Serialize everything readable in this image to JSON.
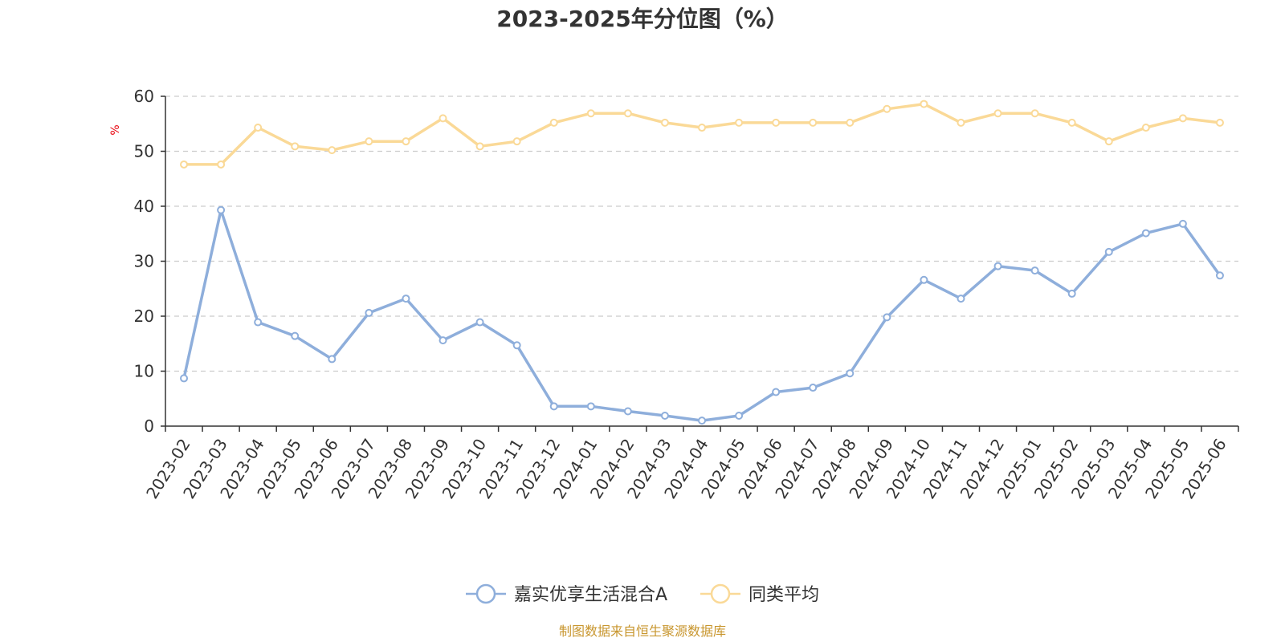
{
  "chart_data": {
    "type": "line",
    "title": "2023-2025年分位图（%）",
    "xlabel": "",
    "ylabel": "%",
    "ylim": [
      0,
      60
    ],
    "yticks": [
      0,
      10,
      20,
      30,
      40,
      50,
      60
    ],
    "grid": true,
    "legend": "bottom-center",
    "categories": [
      "2023-02",
      "2023-03",
      "2023-04",
      "2023-05",
      "2023-06",
      "2023-07",
      "2023-08",
      "2023-09",
      "2023-10",
      "2023-11",
      "2023-12",
      "2024-01",
      "2024-02",
      "2024-03",
      "2024-04",
      "2024-05",
      "2024-06",
      "2024-07",
      "2024-08",
      "2024-09",
      "2024-10",
      "2024-11",
      "2024-12",
      "2025-01",
      "2025-02",
      "2025-03",
      "2025-04",
      "2025-05",
      "2025-06"
    ],
    "series": [
      {
        "name": "嘉实优享生活混合A",
        "color": "#8eaedb",
        "values": [
          8.7,
          39.3,
          18.9,
          16.4,
          12.2,
          20.6,
          23.2,
          15.6,
          18.9,
          14.7,
          3.6,
          3.6,
          2.7,
          1.9,
          1.0,
          1.9,
          6.2,
          7.0,
          9.6,
          19.8,
          26.6,
          23.2,
          29.1,
          28.3,
          24.1,
          31.7,
          35.1,
          36.8,
          27.4
        ]
      },
      {
        "name": "同类平均",
        "color": "#fad997",
        "values": [
          47.6,
          47.6,
          54.3,
          50.9,
          50.2,
          51.8,
          51.8,
          56.0,
          50.9,
          51.8,
          55.2,
          56.9,
          56.9,
          55.2,
          54.3,
          55.2,
          55.2,
          55.2,
          55.2,
          57.7,
          58.6,
          55.2,
          56.9,
          56.9,
          55.2,
          51.8,
          54.3,
          56.0,
          55.2
        ]
      }
    ]
  },
  "source": "制图数据来自恒生聚源数据库"
}
